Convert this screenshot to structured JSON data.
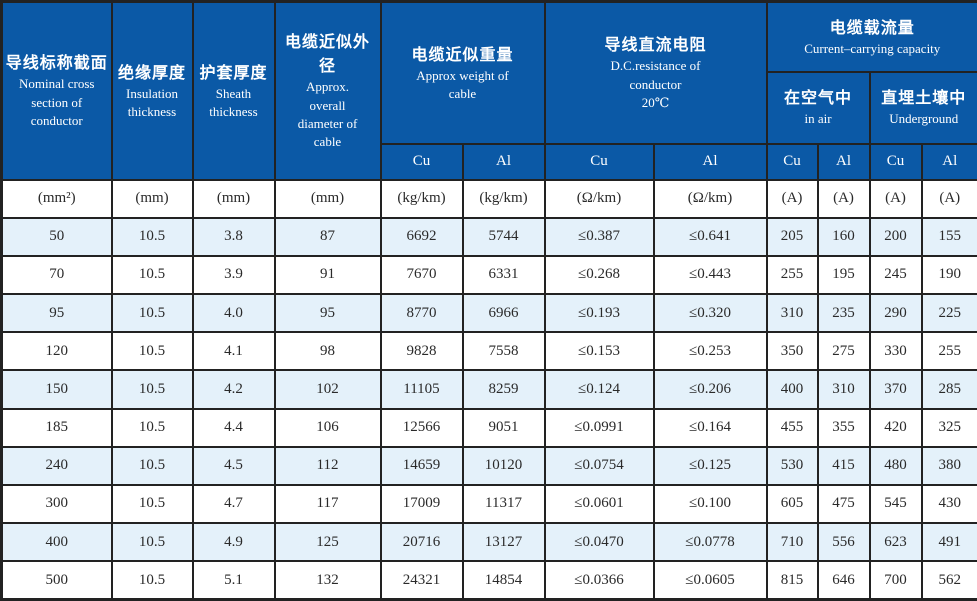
{
  "colors": {
    "header_bg": "#0b59a6",
    "header_fg": "#ffffff",
    "alt_row_bg": "#e4f1fa",
    "border": "#222222"
  },
  "table": {
    "header": {
      "nominal": {
        "zh": "导线标称截面",
        "en": "Nominal cross section of conductor"
      },
      "insulation": {
        "zh": "绝缘厚度",
        "en": "Insulation thickness"
      },
      "sheath": {
        "zh": "护套厚度",
        "en": "Sheath thickness"
      },
      "diameter": {
        "zh": "电缆近似外径",
        "en": "Approx. overall diameter of cable"
      },
      "weight": {
        "zh": "电缆近似重量",
        "en": "Approx weight of cable"
      },
      "resistance": {
        "zh": "导线直流电阻",
        "en": "D.C.resistance of conductor",
        "temp": "20℃"
      },
      "capacity": {
        "zh": "电缆载流量",
        "en": "Current–carrying capacity"
      },
      "in_air": {
        "zh": "在空气中",
        "en": "in air"
      },
      "underground": {
        "zh": "直埋土壤中",
        "en": "Underground"
      }
    },
    "materials": [
      "Cu",
      "Al",
      "Cu",
      "Al",
      "Cu",
      "Al",
      "Cu",
      "Al"
    ],
    "units": [
      "(mm²)",
      "(mm)",
      "(mm)",
      "(mm)",
      "(kg/km)",
      "(kg/km)",
      "(Ω/km)",
      "(Ω/km)",
      "(A)",
      "(A)",
      "(A)",
      "(A)"
    ],
    "rows": [
      [
        "50",
        "10.5",
        "3.8",
        "87",
        "6692",
        "5744",
        "≤0.387",
        "≤0.641",
        "205",
        "160",
        "200",
        "155"
      ],
      [
        "70",
        "10.5",
        "3.9",
        "91",
        "7670",
        "6331",
        "≤0.268",
        "≤0.443",
        "255",
        "195",
        "245",
        "190"
      ],
      [
        "95",
        "10.5",
        "4.0",
        "95",
        "8770",
        "6966",
        "≤0.193",
        "≤0.320",
        "310",
        "235",
        "290",
        "225"
      ],
      [
        "120",
        "10.5",
        "4.1",
        "98",
        "9828",
        "7558",
        "≤0.153",
        "≤0.253",
        "350",
        "275",
        "330",
        "255"
      ],
      [
        "150",
        "10.5",
        "4.2",
        "102",
        "11105",
        "8259",
        "≤0.124",
        "≤0.206",
        "400",
        "310",
        "370",
        "285"
      ],
      [
        "185",
        "10.5",
        "4.4",
        "106",
        "12566",
        "9051",
        "≤0.0991",
        "≤0.164",
        "455",
        "355",
        "420",
        "325"
      ],
      [
        "240",
        "10.5",
        "4.5",
        "112",
        "14659",
        "10120",
        "≤0.0754",
        "≤0.125",
        "530",
        "415",
        "480",
        "380"
      ],
      [
        "300",
        "10.5",
        "4.7",
        "117",
        "17009",
        "11317",
        "≤0.0601",
        "≤0.100",
        "605",
        "475",
        "545",
        "430"
      ],
      [
        "400",
        "10.5",
        "4.9",
        "125",
        "20716",
        "13127",
        "≤0.0470",
        "≤0.0778",
        "710",
        "556",
        "623",
        "491"
      ],
      [
        "500",
        "10.5",
        "5.1",
        "132",
        "24321",
        "14854",
        "≤0.0366",
        "≤0.0605",
        "815",
        "646",
        "700",
        "562"
      ]
    ]
  }
}
